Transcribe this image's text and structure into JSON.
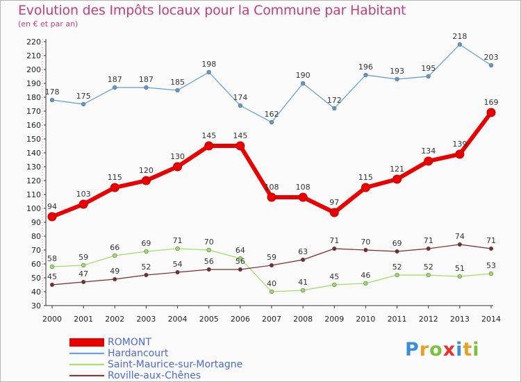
{
  "title": "Evolution des Impôts locaux pour la Commune par Habitant",
  "subtitle": "(en € et par an)",
  "logo": {
    "letters": [
      {
        "ch": "P",
        "color": "#3b8fd8"
      },
      {
        "ch": "r",
        "color": "#e8a020"
      },
      {
        "ch": "o",
        "color": "#7cc040"
      },
      {
        "ch": "x",
        "color": "#e83030"
      },
      {
        "ch": "i",
        "color": "#3b8fd8"
      },
      {
        "ch": "t",
        "color": "#e8a020"
      },
      {
        "ch": "i",
        "color": "#7cc040"
      }
    ]
  },
  "chart_data": {
    "type": "line",
    "x": [
      "2000",
      "2001",
      "2002",
      "2003",
      "2004",
      "2005",
      "2006",
      "2007",
      "2008",
      "2009",
      "2010",
      "2011",
      "2012",
      "2013",
      "2014"
    ],
    "ylim": [
      30,
      220
    ],
    "yticks": [
      30,
      40,
      50,
      60,
      70,
      80,
      90,
      100,
      110,
      120,
      130,
      140,
      150,
      160,
      170,
      180,
      190,
      200,
      210,
      220
    ],
    "grid": false,
    "legend": "bottom-left",
    "series": [
      {
        "name": "ROMONT",
        "color": "#e80000",
        "width": 6,
        "marker": 6,
        "values": [
          94,
          103,
          115,
          120,
          130,
          145,
          145,
          108,
          108,
          97,
          115,
          121,
          134,
          139,
          169
        ]
      },
      {
        "name": "Hardancourt",
        "color": "#5b9bd5",
        "width": 1.2,
        "marker": 2.8,
        "values": [
          178,
          175,
          187,
          187,
          185,
          198,
          174,
          162,
          190,
          172,
          196,
          193,
          195,
          218,
          203
        ]
      },
      {
        "name": "Saint-Maurice-sur-Mortagne",
        "color": "#9be060",
        "width": 1.2,
        "marker": 2.8,
        "values": [
          58,
          59,
          66,
          69,
          71,
          70,
          64,
          40,
          41,
          45,
          46,
          52,
          52,
          51,
          53
        ]
      },
      {
        "name": "Roville-aux-Chênes",
        "color": "#7a2a2a",
        "width": 1.2,
        "marker": 2.8,
        "values": [
          45,
          47,
          49,
          52,
          54,
          56,
          56,
          59,
          63,
          71,
          70,
          69,
          71,
          74,
          71
        ]
      }
    ]
  }
}
